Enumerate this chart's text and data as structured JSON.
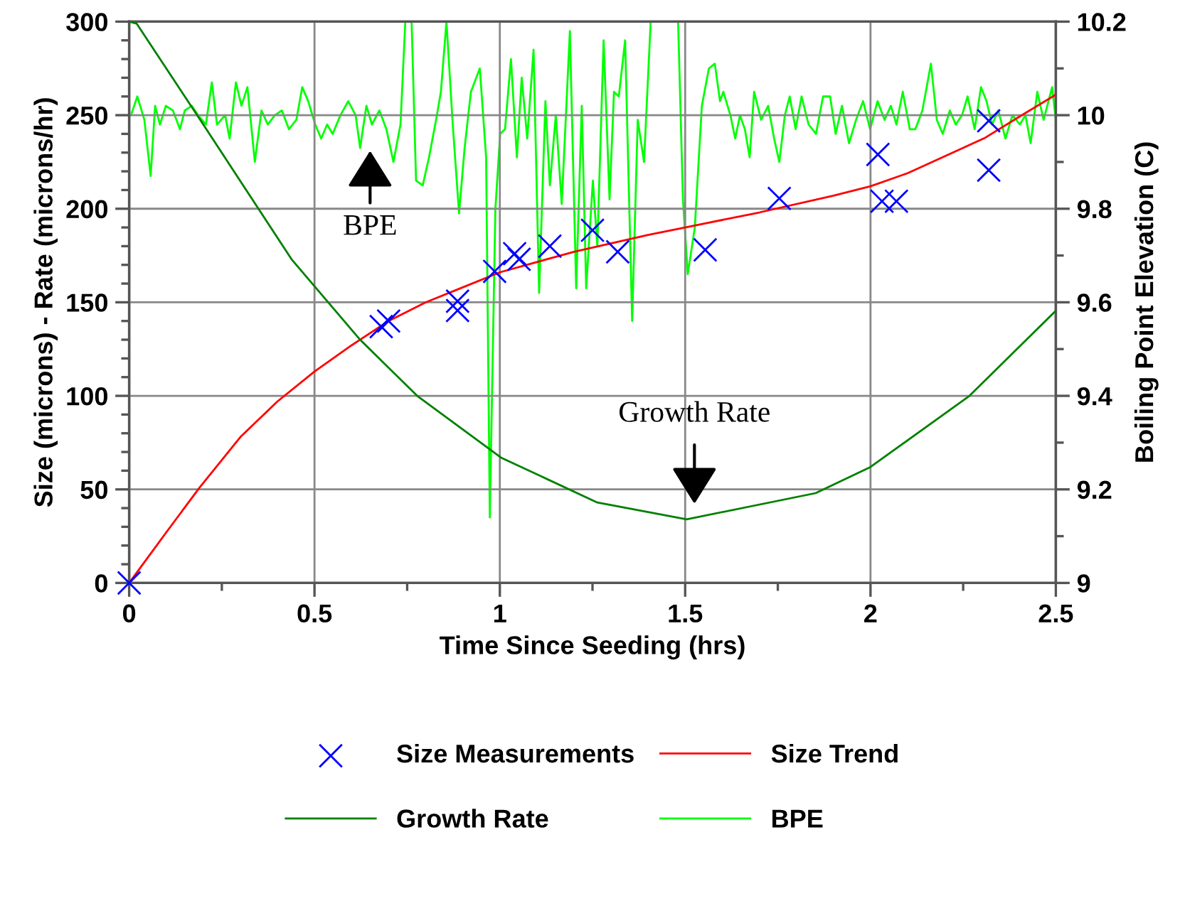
{
  "chart_data": {
    "type": "line",
    "xlabel": "Time Since Seeding (hrs)",
    "ylabel": "Size (microns) - Rate (microns/hr)",
    "y2label": "Boiling Point Elevation (C)",
    "xlim": [
      0,
      2.5
    ],
    "xticks": [
      0,
      0.5,
      1,
      1.5,
      2,
      2.5
    ],
    "ylim": [
      0,
      300
    ],
    "yticks": [
      0,
      50,
      100,
      150,
      200,
      250,
      300
    ],
    "y2lim": [
      9,
      10.2
    ],
    "y2ticks": [
      9,
      9.2,
      9.4,
      9.6,
      9.8,
      10,
      10.2
    ],
    "grid": true,
    "legend": "bottom",
    "annotations": [
      "BPE",
      "Growth Rate"
    ],
    "series": [
      {
        "name": "Size Measurements",
        "type": "scatter",
        "marker": "cross",
        "color": "#0000ff",
        "x": [
          0,
          0.68,
          0.7,
          0.886,
          0.886,
          0.986,
          1.04,
          1.052,
          1.135,
          1.25,
          1.318,
          1.554,
          1.754,
          2.02,
          2.031,
          2.07,
          2.319,
          2.319
        ],
        "values": [
          0,
          137,
          140,
          150.6,
          145.6,
          166.5,
          176,
          173,
          180,
          188.5,
          177,
          178,
          205.5,
          229,
          204,
          204,
          247,
          220.6
        ]
      },
      {
        "name": "Size Trend",
        "color": "#ff0000",
        "x": [
          0,
          0.1,
          0.19,
          0.3,
          0.4,
          0.5,
          0.6,
          0.7,
          0.8,
          0.9,
          1.0,
          1.2,
          1.4,
          1.5,
          1.7,
          1.9,
          2.0,
          2.1,
          2.2,
          2.31,
          2.4,
          2.5
        ],
        "values": [
          0,
          27,
          51,
          78,
          97,
          113,
          127,
          140,
          150,
          158,
          166,
          177,
          186,
          190,
          198,
          207,
          212,
          219,
          228,
          238,
          249,
          261
        ]
      },
      {
        "name": "Growth Rate",
        "color": "#008000",
        "x": [
          0,
          0.02,
          0.2,
          0.438,
          0.623,
          0.777,
          1.003,
          1.263,
          1.504,
          1.852,
          2.0,
          2.267,
          2.5
        ],
        "values": [
          300,
          299,
          245,
          173,
          130,
          100,
          67,
          43,
          34,
          48,
          62,
          100,
          145.5
        ]
      },
      {
        "name": "BPE",
        "axis": "y2",
        "color": "#00ff00",
        "x": [
          0.005,
          0.022,
          0.041,
          0.058,
          0.07,
          0.083,
          0.099,
          0.118,
          0.137,
          0.15,
          0.169,
          0.186,
          0.207,
          0.223,
          0.237,
          0.259,
          0.271,
          0.288,
          0.303,
          0.319,
          0.339,
          0.357,
          0.374,
          0.393,
          0.412,
          0.431,
          0.451,
          0.467,
          0.483,
          0.502,
          0.518,
          0.534,
          0.549,
          0.57,
          0.591,
          0.611,
          0.623,
          0.64,
          0.655,
          0.675,
          0.694,
          0.713,
          0.732,
          0.745,
          0.762,
          0.774,
          0.792,
          0.809,
          0.828,
          0.841,
          0.856,
          0.873,
          0.89,
          0.905,
          0.922,
          0.946,
          0.963,
          0.973,
          0.988,
          1.001,
          1.014,
          1.03,
          1.046,
          1.059,
          1.074,
          1.091,
          1.106,
          1.123,
          1.135,
          1.151,
          1.167,
          1.189,
          1.206,
          1.221,
          1.233,
          1.251,
          1.263,
          1.28,
          1.296,
          1.308,
          1.321,
          1.338,
          1.357,
          1.372,
          1.389,
          1.407,
          1.481,
          1.494,
          1.507,
          1.526,
          1.545,
          1.564,
          1.58,
          1.594,
          1.603,
          1.622,
          1.635,
          1.648,
          1.661,
          1.674,
          1.686,
          1.705,
          1.724,
          1.74,
          1.754,
          1.769,
          1.782,
          1.798,
          1.814,
          1.833,
          1.853,
          1.872,
          1.891,
          1.906,
          1.923,
          1.942,
          1.961,
          1.98,
          1.999,
          2.019,
          2.038,
          2.055,
          2.07,
          2.087,
          2.106,
          2.121,
          2.14,
          2.163,
          2.179,
          2.195,
          2.214,
          2.23,
          2.247,
          2.262,
          2.281,
          2.298,
          2.313,
          2.328,
          2.345,
          2.364,
          2.383,
          2.403,
          2.418,
          2.432,
          2.45,
          2.467,
          2.49,
          2.5
        ],
        "values": [
          10.0,
          10.04,
          9.99,
          9.87,
          10.02,
          9.98,
          10.02,
          10.01,
          9.97,
          10.01,
          10.02,
          10.0,
          9.98,
          10.07,
          9.98,
          10.0,
          9.95,
          10.07,
          10.02,
          10.06,
          9.9,
          10.01,
          9.98,
          10.0,
          10.01,
          9.97,
          9.99,
          10.06,
          10.03,
          9.98,
          9.95,
          9.98,
          9.96,
          10.0,
          10.03,
          10.0,
          9.93,
          10.02,
          9.98,
          10.01,
          9.97,
          9.9,
          9.98,
          10.2,
          10.2,
          9.86,
          9.85,
          9.91,
          9.99,
          10.05,
          10.2,
          9.98,
          9.79,
          9.93,
          10.05,
          10.1,
          9.91,
          9.14,
          9.8,
          9.96,
          9.97,
          10.12,
          9.91,
          10.08,
          9.95,
          10.14,
          9.62,
          10.03,
          9.85,
          10.0,
          9.81,
          10.18,
          9.63,
          10.02,
          9.63,
          9.86,
          9.72,
          10.16,
          9.82,
          10.05,
          10.04,
          10.16,
          9.56,
          9.99,
          9.9,
          10.2,
          10.2,
          9.82,
          9.66,
          9.76,
          10.02,
          10.1,
          10.11,
          10.03,
          10.05,
          10.0,
          9.95,
          10.0,
          9.97,
          9.91,
          10.05,
          9.99,
          10.02,
          9.95,
          9.9,
          10.0,
          10.04,
          9.97,
          10.04,
          9.98,
          9.96,
          10.04,
          10.04,
          9.96,
          10.02,
          9.94,
          9.99,
          10.03,
          9.97,
          10.03,
          9.99,
          10.02,
          9.98,
          10.05,
          9.97,
          9.97,
          10.01,
          10.11,
          9.99,
          9.96,
          10.01,
          9.98,
          10.0,
          10.04,
          9.97,
          10.06,
          10.03,
          9.98,
          10.01,
          9.95,
          10.0,
          9.98,
          10.0,
          9.94,
          10.05,
          9.99,
          10.06,
          9.99
        ]
      }
    ]
  }
}
